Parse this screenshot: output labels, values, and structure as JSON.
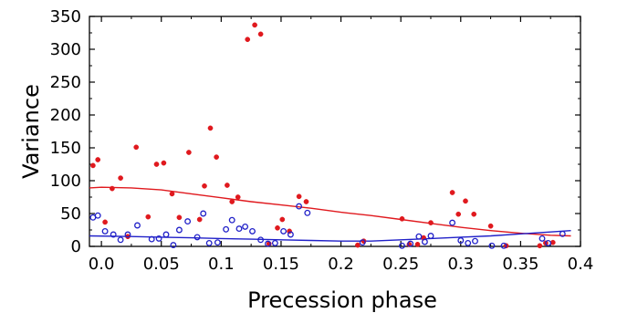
{
  "chart_data": {
    "type": "scatter",
    "xlabel": "Precession phase",
    "ylabel": "Variance",
    "xlim": [
      -0.01,
      0.4
    ],
    "ylim": [
      0,
      350
    ],
    "x_ticks": [
      0.0,
      0.05,
      0.1,
      0.15,
      0.2,
      0.25,
      0.3,
      0.35,
      0.4
    ],
    "x_tick_labels": [
      "0.0",
      "0.05",
      "0.1",
      "0.15",
      "0.2",
      "0.25",
      "0.3",
      "0.35",
      "0.4"
    ],
    "y_ticks": [
      0,
      50,
      100,
      150,
      200,
      250,
      300,
      350
    ],
    "y_tick_labels": [
      "0",
      "50",
      "100",
      "150",
      "200",
      "250",
      "300",
      "350"
    ],
    "grid": false,
    "series": [
      {
        "kind": "points",
        "marker": "filled-circle",
        "color": "#e0191e",
        "points": [
          [
            -0.007,
            123
          ],
          [
            -0.003,
            132
          ],
          [
            0.003,
            37
          ],
          [
            0.009,
            88
          ],
          [
            0.016,
            104
          ],
          [
            0.022,
            15
          ],
          [
            0.029,
            151
          ],
          [
            0.039,
            45
          ],
          [
            0.046,
            125
          ],
          [
            0.052,
            127
          ],
          [
            0.059,
            80
          ],
          [
            0.065,
            44
          ],
          [
            0.073,
            143
          ],
          [
            0.082,
            41
          ],
          [
            0.086,
            92
          ],
          [
            0.091,
            180
          ],
          [
            0.096,
            136
          ],
          [
            0.105,
            93
          ],
          [
            0.109,
            68
          ],
          [
            0.114,
            75
          ],
          [
            0.122,
            315
          ],
          [
            0.128,
            337
          ],
          [
            0.133,
            323
          ],
          [
            0.14,
            4
          ],
          [
            0.147,
            28
          ],
          [
            0.151,
            41
          ],
          [
            0.157,
            23
          ],
          [
            0.165,
            76
          ],
          [
            0.171,
            68
          ],
          [
            0.214,
            2
          ],
          [
            0.219,
            8
          ],
          [
            0.251,
            42
          ],
          [
            0.257,
            3
          ],
          [
            0.264,
            3
          ],
          [
            0.269,
            13
          ],
          [
            0.275,
            36
          ],
          [
            0.293,
            82
          ],
          [
            0.298,
            49
          ],
          [
            0.304,
            69
          ],
          [
            0.311,
            49
          ],
          [
            0.325,
            31
          ],
          [
            0.338,
            1
          ],
          [
            0.366,
            1
          ],
          [
            0.371,
            5
          ],
          [
            0.377,
            6
          ]
        ]
      },
      {
        "kind": "points",
        "marker": "open-circle",
        "color": "#2020c8",
        "points": [
          [
            -0.007,
            44
          ],
          [
            -0.003,
            47
          ],
          [
            0.003,
            23
          ],
          [
            0.01,
            18
          ],
          [
            0.016,
            10
          ],
          [
            0.022,
            18
          ],
          [
            0.03,
            32
          ],
          [
            0.042,
            11
          ],
          [
            0.048,
            12
          ],
          [
            0.054,
            18
          ],
          [
            0.06,
            2
          ],
          [
            0.065,
            25
          ],
          [
            0.072,
            38
          ],
          [
            0.08,
            14
          ],
          [
            0.085,
            50
          ],
          [
            0.09,
            5
          ],
          [
            0.097,
            6
          ],
          [
            0.104,
            26
          ],
          [
            0.109,
            40
          ],
          [
            0.115,
            27
          ],
          [
            0.12,
            30
          ],
          [
            0.126,
            23
          ],
          [
            0.133,
            10
          ],
          [
            0.139,
            4
          ],
          [
            0.145,
            5
          ],
          [
            0.152,
            23
          ],
          [
            0.158,
            18
          ],
          [
            0.165,
            61
          ],
          [
            0.172,
            51
          ],
          [
            0.218,
            6
          ],
          [
            0.251,
            1
          ],
          [
            0.258,
            4
          ],
          [
            0.265,
            15
          ],
          [
            0.27,
            7
          ],
          [
            0.275,
            16
          ],
          [
            0.293,
            36
          ],
          [
            0.3,
            9
          ],
          [
            0.306,
            5
          ],
          [
            0.312,
            8
          ],
          [
            0.326,
            1
          ],
          [
            0.336,
            1
          ],
          [
            0.368,
            12
          ],
          [
            0.373,
            5
          ],
          [
            0.385,
            19
          ]
        ]
      },
      {
        "kind": "line",
        "color": "#e0191e",
        "points": [
          [
            -0.01,
            89
          ],
          [
            0.0,
            90
          ],
          [
            0.025,
            89
          ],
          [
            0.05,
            86
          ],
          [
            0.075,
            80
          ],
          [
            0.1,
            74
          ],
          [
            0.125,
            68
          ],
          [
            0.15,
            63
          ],
          [
            0.175,
            58
          ],
          [
            0.2,
            52
          ],
          [
            0.225,
            47
          ],
          [
            0.25,
            41
          ],
          [
            0.275,
            35
          ],
          [
            0.3,
            29
          ],
          [
            0.325,
            24
          ],
          [
            0.35,
            20
          ],
          [
            0.375,
            17
          ],
          [
            0.392,
            16
          ]
        ]
      },
      {
        "kind": "line",
        "color": "#2020c8",
        "points": [
          [
            -0.01,
            16
          ],
          [
            0.025,
            15
          ],
          [
            0.05,
            14
          ],
          [
            0.075,
            13
          ],
          [
            0.1,
            12
          ],
          [
            0.125,
            11
          ],
          [
            0.15,
            10
          ],
          [
            0.175,
            9
          ],
          [
            0.2,
            8
          ],
          [
            0.225,
            8
          ],
          [
            0.25,
            10
          ],
          [
            0.275,
            12
          ],
          [
            0.3,
            14
          ],
          [
            0.325,
            16
          ],
          [
            0.35,
            19
          ],
          [
            0.375,
            22
          ],
          [
            0.392,
            24
          ]
        ]
      }
    ]
  }
}
